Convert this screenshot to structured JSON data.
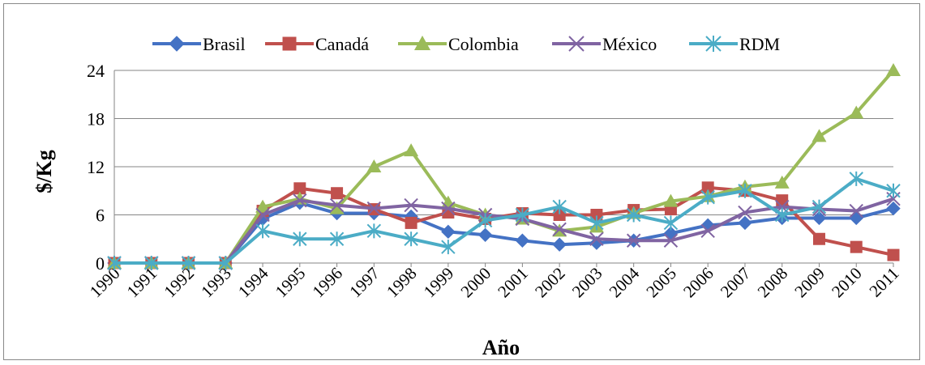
{
  "chart_data": {
    "type": "line",
    "title": "",
    "xlabel": "Año",
    "ylabel": "$/Kg",
    "x": [
      "1990",
      "1991",
      "1992",
      "1993",
      "1994",
      "1995",
      "1996",
      "1997",
      "1998",
      "1999",
      "2000",
      "2001",
      "2002",
      "2003",
      "2004",
      "2005",
      "2006",
      "2007",
      "2008",
      "2009",
      "2010",
      "2011"
    ],
    "ylim": [
      0,
      24
    ],
    "yticks": [
      0,
      6,
      12,
      18,
      24
    ],
    "grid": true,
    "legend_position": "top",
    "series": [
      {
        "name": "Brasil",
        "color": "#4472C4",
        "marker": "diamond",
        "values": [
          0,
          0,
          0,
          0,
          5.5,
          7.5,
          6.2,
          6.2,
          5.8,
          3.9,
          3.5,
          2.8,
          2.3,
          2.5,
          2.8,
          3.7,
          4.7,
          5.0,
          5.6,
          5.6,
          5.6,
          6.8
        ]
      },
      {
        "name": "Canadá",
        "color": "#C0504D",
        "marker": "square",
        "values": [
          0,
          0,
          0,
          0,
          6.5,
          9.3,
          8.7,
          6.7,
          5.0,
          6.3,
          5.5,
          6.2,
          6.0,
          6.0,
          6.6,
          6.7,
          9.4,
          9.0,
          7.8,
          3.0,
          2.0,
          1.0
        ]
      },
      {
        "name": "Colombia",
        "color": "#9BBB59",
        "marker": "triangle",
        "values": [
          0,
          0,
          0,
          0,
          7.0,
          8.0,
          6.8,
          12.0,
          14.0,
          7.5,
          6.0,
          5.5,
          4.0,
          4.5,
          6.2,
          7.7,
          8.3,
          9.5,
          10.0,
          15.8,
          18.7,
          24.0
        ]
      },
      {
        "name": "México",
        "color": "#8064A2",
        "marker": "x",
        "values": [
          0,
          0,
          0,
          0,
          6.0,
          7.8,
          7.2,
          6.8,
          7.2,
          6.8,
          6.0,
          5.5,
          4.2,
          3.0,
          2.8,
          2.8,
          4.0,
          6.3,
          7.0,
          6.7,
          6.5,
          8.0
        ]
      },
      {
        "name": "RDM",
        "color": "#4BACC6",
        "marker": "asterisk",
        "values": [
          0,
          0,
          0,
          0,
          4.0,
          3.0,
          3.0,
          4.0,
          3.0,
          2.0,
          5.3,
          6.0,
          7.0,
          5.0,
          6.0,
          5.0,
          8.2,
          9.0,
          6.0,
          7.0,
          10.5,
          9.0
        ]
      }
    ]
  }
}
